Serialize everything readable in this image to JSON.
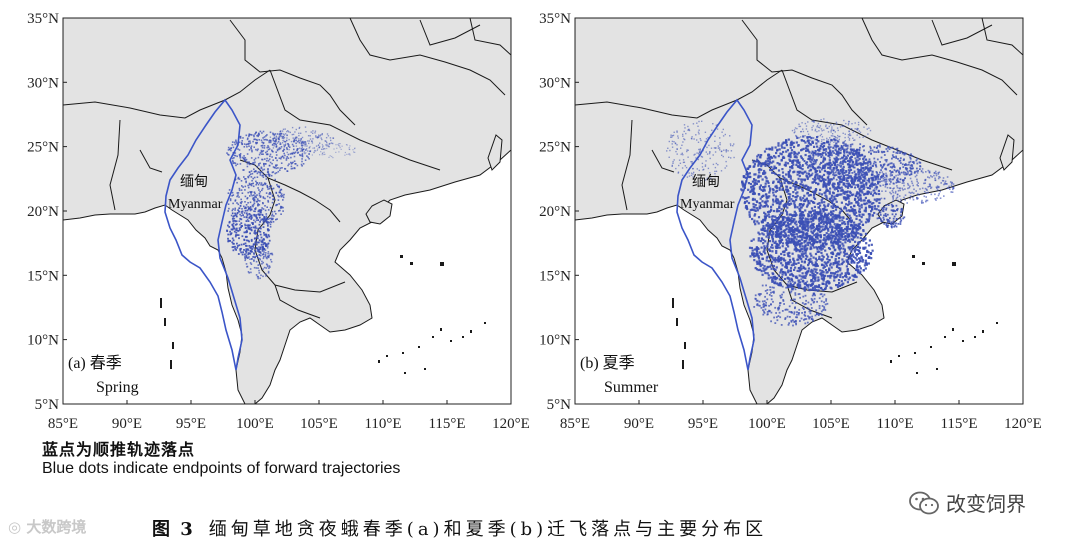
{
  "panels": [
    {
      "id": "a",
      "label": "(a) 春季",
      "season_en": "Spring",
      "country_zh": "缅甸",
      "country_en": "Myanmar"
    },
    {
      "id": "b",
      "label": "(b) 夏季",
      "season_en": "Summer",
      "country_zh": "缅甸",
      "country_en": "Myanmar"
    }
  ],
  "axes": {
    "lat_ticks": [
      "35°N",
      "30°N",
      "25°N",
      "20°N",
      "15°N",
      "10°N",
      "5°N"
    ],
    "lon_ticks": [
      "85°E",
      "90°E",
      "95°E",
      "100°E",
      "105°E",
      "110°E",
      "115°E",
      "120°E"
    ]
  },
  "legend": {
    "note_zh": "蓝点为顺推轨迹落点",
    "note_en": "Blue dots indicate endpoints of forward trajectories",
    "dot_color": "#3b4fb5"
  },
  "colors": {
    "land": "#e3e3e3",
    "sea": "#ffffff",
    "border": "#1a1a1a",
    "myanmar_border": "#3b55c8",
    "dots": "#3b4fb5"
  },
  "caption": {
    "figure_no": "图 3",
    "text": "缅甸草地贪夜蛾春季(a)和夏季(b)迁飞落点与主要分布区"
  },
  "watermarks": {
    "left": "大数跨境",
    "right": "改变饲界"
  }
}
